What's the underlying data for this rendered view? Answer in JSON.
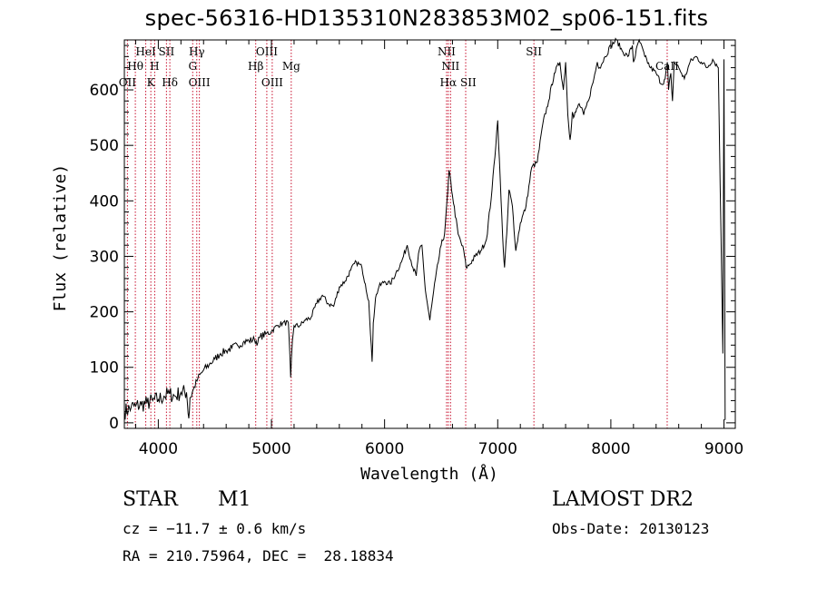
{
  "chart_data": {
    "type": "line",
    "title": "spec-56316-HD135310N283853M02_sp06-151.fits",
    "xlabel": "Wavelength (Å)",
    "ylabel": "Flux (relative)",
    "xlim": [
      3700,
      9100
    ],
    "ylim": [
      -10,
      690
    ],
    "x_ticks": [
      4000,
      5000,
      6000,
      7000,
      8000,
      9000
    ],
    "y_ticks": [
      0,
      100,
      200,
      300,
      400,
      500,
      600
    ],
    "grid": false,
    "series": [
      {
        "name": "spectrum",
        "x": [
          3700,
          3760,
          3800,
          3850,
          3900,
          3950,
          4000,
          4050,
          4100,
          4150,
          4200,
          4250,
          4270,
          4280,
          4300,
          4350,
          4400,
          4450,
          4500,
          4550,
          4600,
          4650,
          4700,
          4750,
          4800,
          4850,
          4880,
          4900,
          4950,
          5000,
          5050,
          5100,
          5150,
          5170,
          5185,
          5200,
          5250,
          5300,
          5350,
          5400,
          5450,
          5500,
          5550,
          5600,
          5650,
          5700,
          5750,
          5800,
          5830,
          5860,
          5875,
          5890,
          5900,
          5920,
          5950,
          6000,
          6050,
          6100,
          6150,
          6200,
          6250,
          6280,
          6300,
          6330,
          6360,
          6400,
          6450,
          6500,
          6530,
          6560,
          6570,
          6600,
          6650,
          6700,
          6720,
          6750,
          6800,
          6850,
          6900,
          6950,
          7000,
          7030,
          7050,
          7060,
          7080,
          7100,
          7130,
          7160,
          7200,
          7250,
          7300,
          7350,
          7400,
          7450,
          7500,
          7550,
          7580,
          7600,
          7620,
          7640,
          7660,
          7670,
          7690,
          7720,
          7760,
          7800,
          7850,
          7880,
          7900,
          7950,
          8000,
          8050,
          8100,
          8150,
          8190,
          8200,
          8250,
          8300,
          8350,
          8400,
          8450,
          8480,
          8500,
          8510,
          8530,
          8545,
          8560,
          8600,
          8650,
          8700,
          8750,
          8800,
          8850,
          8900,
          8950,
          8990,
          9000,
          9010
        ],
        "values": [
          20,
          28,
          30,
          33,
          35,
          40,
          42,
          48,
          52,
          48,
          55,
          55,
          8,
          45,
          55,
          80,
          95,
          105,
          115,
          125,
          130,
          135,
          140,
          145,
          148,
          150,
          145,
          155,
          160,
          165,
          175,
          180,
          180,
          82,
          148,
          175,
          175,
          185,
          190,
          215,
          230,
          215,
          210,
          245,
          255,
          275,
          290,
          280,
          250,
          220,
          160,
          110,
          180,
          225,
          245,
          255,
          250,
          270,
          290,
          320,
          280,
          265,
          305,
          320,
          240,
          185,
          260,
          320,
          340,
          420,
          455,
          410,
          340,
          310,
          280,
          285,
          300,
          310,
          330,
          420,
          545,
          400,
          310,
          280,
          340,
          420,
          390,
          310,
          360,
          390,
          460,
          470,
          540,
          580,
          630,
          650,
          600,
          650,
          555,
          510,
          560,
          550,
          560,
          575,
          555,
          580,
          620,
          650,
          640,
          660,
          680,
          690,
          670,
          660,
          680,
          650,
          690,
          660,
          640,
          630,
          610,
          620,
          650,
          600,
          630,
          580,
          650,
          640,
          620,
          650,
          660,
          650,
          640,
          655,
          640,
          125,
          655,
          5
        ]
      }
    ],
    "spectral_lines": [
      {
        "name": "OII",
        "wavelength": 3727
      },
      {
        "name": "Hθ",
        "wavelength": 3797
      },
      {
        "name": "HeI",
        "wavelength": 3889
      },
      {
        "name": "K",
        "wavelength": 3934
      },
      {
        "name": "H",
        "wavelength": 3968
      },
      {
        "name": "SII",
        "wavelength": 4072
      },
      {
        "name": "Hδ",
        "wavelength": 4102
      },
      {
        "name": "Hγ",
        "wavelength": 4340
      },
      {
        "name": "G",
        "wavelength": 4304
      },
      {
        "name": "OIII",
        "wavelength": 4363
      },
      {
        "name": "Hβ",
        "wavelength": 4861
      },
      {
        "name": "OIII",
        "wavelength": 4959
      },
      {
        "name": "OIII",
        "wavelength": 5007
      },
      {
        "name": "Mg",
        "wavelength": 5175
      },
      {
        "name": "NII",
        "wavelength": 6548
      },
      {
        "name": "Hα",
        "wavelength": 6563
      },
      {
        "name": "NII",
        "wavelength": 6583
      },
      {
        "name": "SII",
        "wavelength": 6717
      },
      {
        "name": "SII",
        "wavelength": 7320
      },
      {
        "name": "CaII",
        "wavelength": 8498
      }
    ]
  },
  "info": {
    "class": "STAR",
    "subclass": "M1",
    "survey": "LAMOST DR2",
    "cz": "cz = −11.7 ± 0.6 km/s",
    "obs_date": "Obs-Date: 20130123",
    "radec": "RA = 210.75964, DEC =  28.18834"
  },
  "colors": {
    "spectrum": "#000000",
    "lines": "#c8102e",
    "axes": "#000000"
  }
}
